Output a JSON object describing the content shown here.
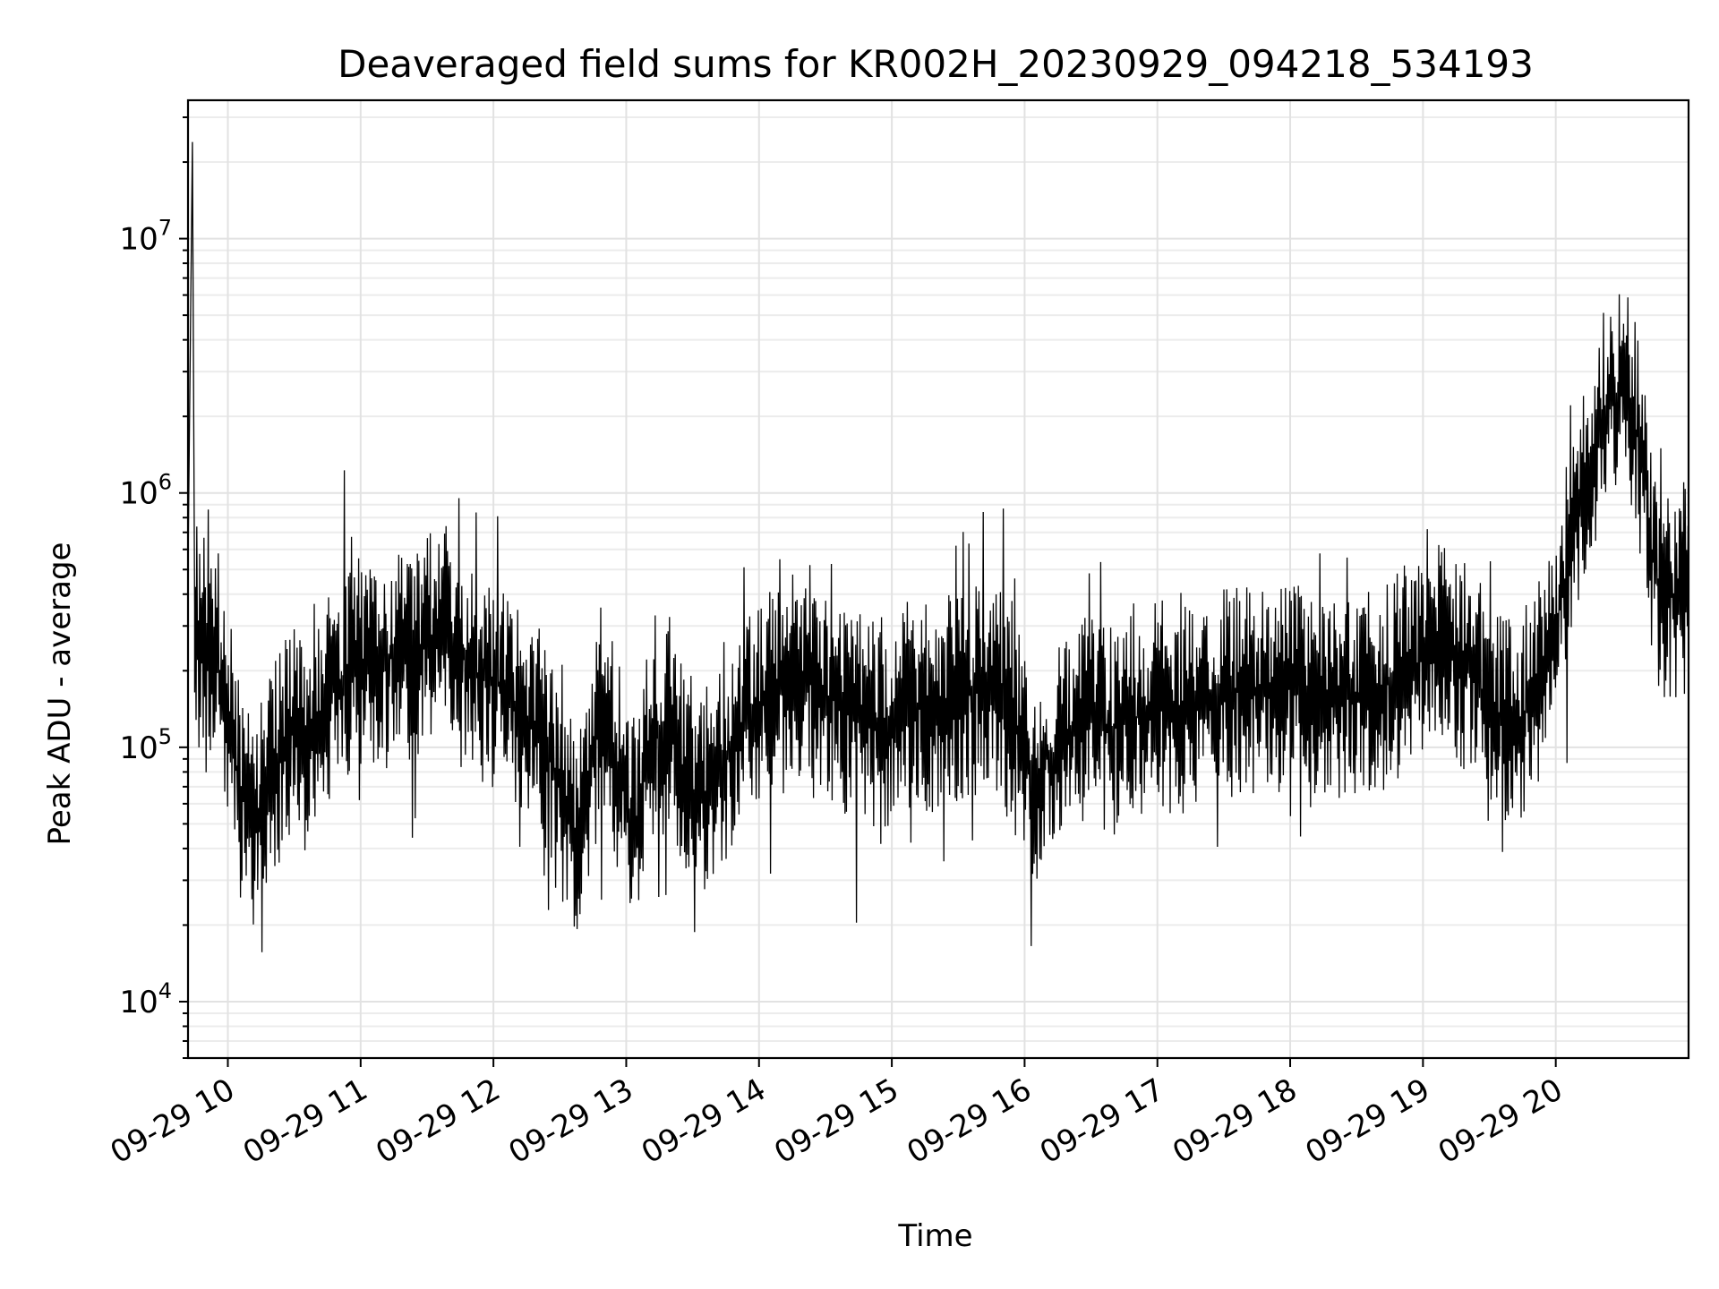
{
  "chart_data": {
    "type": "line",
    "title": "Deaveraged field sums for KR002H_20230929_094218_534193",
    "xlabel": "Time",
    "ylabel": "Peak ADU - average",
    "yscale": "log",
    "ylim": [
      6000,
      35000000
    ],
    "xlim": [
      "2023-09-29 09:42",
      "2023-09-29 21:00"
    ],
    "grid": true,
    "legend": "none",
    "line_color": "#000000",
    "x_ticks": [
      {
        "value": "2023-09-29 10:00",
        "label": "09-29 10"
      },
      {
        "value": "2023-09-29 11:00",
        "label": "09-29 11"
      },
      {
        "value": "2023-09-29 12:00",
        "label": "09-29 12"
      },
      {
        "value": "2023-09-29 13:00",
        "label": "09-29 13"
      },
      {
        "value": "2023-09-29 14:00",
        "label": "09-29 14"
      },
      {
        "value": "2023-09-29 15:00",
        "label": "09-29 15"
      },
      {
        "value": "2023-09-29 16:00",
        "label": "09-29 16"
      },
      {
        "value": "2023-09-29 17:00",
        "label": "09-29 17"
      },
      {
        "value": "2023-09-29 18:00",
        "label": "09-29 18"
      },
      {
        "value": "2023-09-29 19:00",
        "label": "09-29 19"
      },
      {
        "value": "2023-09-29 20:00",
        "label": "09-29 20"
      }
    ],
    "y_ticks": [
      {
        "value": 10000,
        "base": "10",
        "exp": "4"
      },
      {
        "value": 100000,
        "base": "10",
        "exp": "5"
      },
      {
        "value": 1000000,
        "base": "10",
        "exp": "6"
      },
      {
        "value": 10000000,
        "base": "10",
        "exp": "7"
      }
    ],
    "series": [
      {
        "x": [
          "2023-09-29 09:42",
          "2023-09-29 09:44",
          "2023-09-29 09:45",
          "2023-09-29 09:47",
          "2023-09-29 09:50",
          "2023-09-29 09:55",
          "2023-09-29 10:00",
          "2023-09-29 10:05",
          "2023-09-29 10:10",
          "2023-09-29 10:15",
          "2023-09-29 10:20",
          "2023-09-29 10:25",
          "2023-09-29 10:30",
          "2023-09-29 10:35",
          "2023-09-29 10:40",
          "2023-09-29 10:45",
          "2023-09-29 10:50",
          "2023-09-29 10:55",
          "2023-09-29 11:00",
          "2023-09-29 11:10",
          "2023-09-29 11:20",
          "2023-09-29 11:30",
          "2023-09-29 11:36",
          "2023-09-29 11:40",
          "2023-09-29 11:50",
          "2023-09-29 12:00",
          "2023-09-29 12:10",
          "2023-09-29 12:20",
          "2023-09-29 12:30",
          "2023-09-29 12:38",
          "2023-09-29 12:45",
          "2023-09-29 12:50",
          "2023-09-29 13:00",
          "2023-09-29 13:05",
          "2023-09-29 13:10",
          "2023-09-29 13:20",
          "2023-09-29 13:30",
          "2023-09-29 13:40",
          "2023-09-29 13:50",
          "2023-09-29 14:00",
          "2023-09-29 14:10",
          "2023-09-29 14:20",
          "2023-09-29 14:30",
          "2023-09-29 14:40",
          "2023-09-29 14:50",
          "2023-09-29 15:00",
          "2023-09-29 15:10",
          "2023-09-29 15:20",
          "2023-09-29 15:30",
          "2023-09-29 15:40",
          "2023-09-29 15:50",
          "2023-09-29 16:00",
          "2023-09-29 16:05",
          "2023-09-29 16:10",
          "2023-09-29 16:20",
          "2023-09-29 16:30",
          "2023-09-29 16:40",
          "2023-09-29 16:50",
          "2023-09-29 17:00",
          "2023-09-29 17:10",
          "2023-09-29 17:20",
          "2023-09-29 17:30",
          "2023-09-29 17:40",
          "2023-09-29 17:50",
          "2023-09-29 18:00",
          "2023-09-29 18:10",
          "2023-09-29 18:20",
          "2023-09-29 18:30",
          "2023-09-29 18:40",
          "2023-09-29 18:50",
          "2023-09-29 19:00",
          "2023-09-29 19:10",
          "2023-09-29 19:20",
          "2023-09-29 19:30",
          "2023-09-29 19:40",
          "2023-09-29 19:50",
          "2023-09-29 20:00",
          "2023-09-29 20:05",
          "2023-09-29 20:10",
          "2023-09-29 20:15",
          "2023-09-29 20:20",
          "2023-09-29 20:25",
          "2023-09-29 20:30",
          "2023-09-29 20:35",
          "2023-09-29 20:40",
          "2023-09-29 20:45",
          "2023-09-29 20:50",
          "2023-09-29 20:55",
          "2023-09-29 21:00"
        ],
        "y": [
          500000,
          24000000,
          350000,
          250000,
          300000,
          200000,
          150000,
          70000,
          50000,
          60000,
          80000,
          100000,
          120000,
          100000,
          110000,
          160000,
          180000,
          190000,
          200000,
          230000,
          220000,
          260000,
          300000,
          280000,
          200000,
          180000,
          150000,
          120000,
          70000,
          40000,
          90000,
          150000,
          60000,
          50000,
          100000,
          130000,
          60000,
          70000,
          110000,
          150000,
          180000,
          200000,
          160000,
          140000,
          120000,
          130000,
          150000,
          140000,
          160000,
          170000,
          150000,
          100000,
          60000,
          90000,
          110000,
          130000,
          120000,
          130000,
          150000,
          140000,
          150000,
          160000,
          170000,
          160000,
          180000,
          170000,
          160000,
          150000,
          170000,
          200000,
          220000,
          250000,
          200000,
          150000,
          120000,
          150000,
          300000,
          500000,
          800000,
          1200000,
          1800000,
          2300000,
          2600000,
          2000000,
          1200000,
          450000,
          380000,
          400000,
          400000
        ]
      }
    ]
  }
}
